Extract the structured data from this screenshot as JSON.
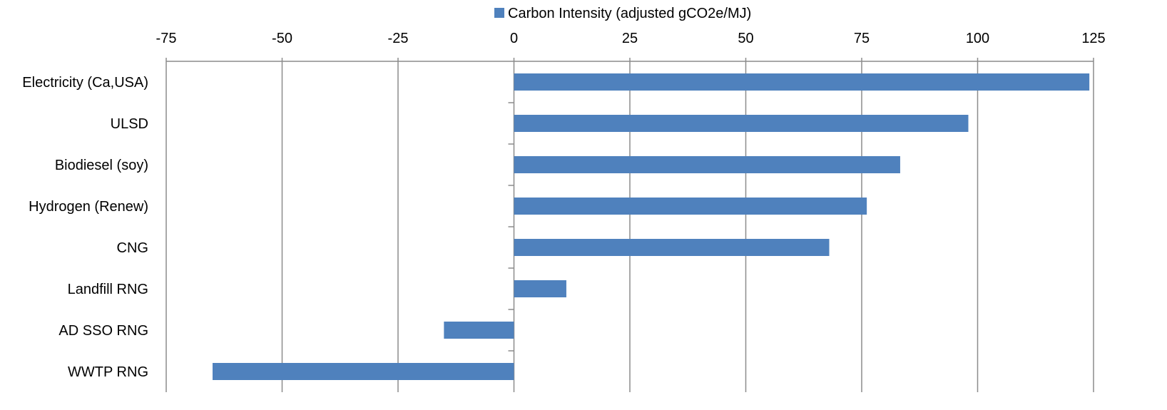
{
  "chart_data": {
    "type": "bar",
    "orientation": "horizontal",
    "categories": [
      "Electricity (Ca,USA)",
      "ULSD",
      "Biodiesel (soy)",
      "Hydrogen (Renew)",
      "CNG",
      "Landfill RNG",
      "AD SSO RNG",
      "WWTP RNG"
    ],
    "series": [
      {
        "name": "Carbon Intensity (adjusted gCO2e/MJ)",
        "values": [
          124.1,
          98.0,
          83.3,
          76.1,
          68.0,
          11.3,
          -15.1,
          -65.0
        ],
        "color": "#4F81BD"
      }
    ],
    "title": "",
    "xlabel": "",
    "ylabel": "",
    "xlim": [
      -75,
      125
    ],
    "xticks": [
      -75,
      -50,
      -25,
      0,
      25,
      50,
      75,
      100,
      125
    ],
    "xtick_labels": [
      "-75",
      "-50",
      "-25",
      "0",
      "25",
      "50",
      "75",
      "100",
      "125"
    ],
    "x_axis_position": "top",
    "grid": true,
    "legend_position": "top"
  }
}
